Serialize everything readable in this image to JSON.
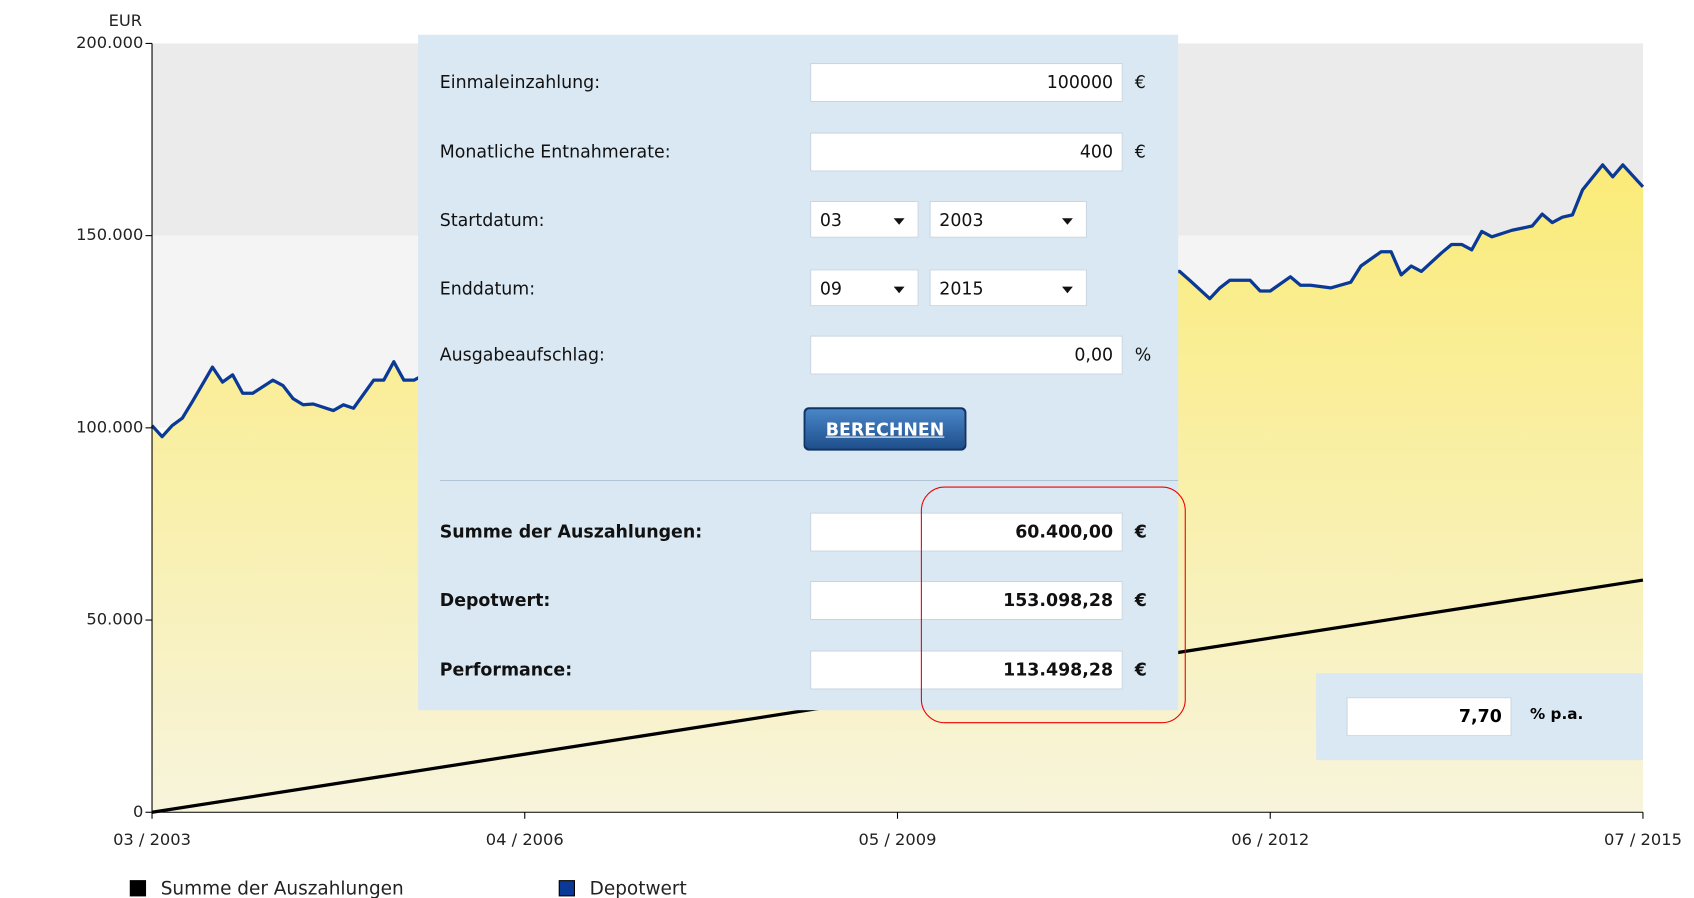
{
  "chart_data": {
    "type": "line",
    "ylabel": "EUR",
    "xlim": [
      0,
      148
    ],
    "ylim": [
      0,
      200000
    ],
    "xticks": [
      {
        "value": 0,
        "label": "03 / 2003"
      },
      {
        "value": 37,
        "label": "04 / 2006"
      },
      {
        "value": 74,
        "label": "05 / 2009"
      },
      {
        "value": 111,
        "label": "06 / 2012"
      },
      {
        "value": 148,
        "label": "07 / 2015"
      }
    ],
    "yticks": [
      0,
      {
        "value": 50000,
        "label": "50.000"
      },
      {
        "value": 100000,
        "label": "100.000"
      },
      {
        "value": 150000,
        "label": "150.000"
      },
      {
        "value": 200000,
        "label": "200.000"
      }
    ],
    "series": [
      {
        "name": "Summe der Auszahlungen",
        "color": "#000000",
        "x": [
          0,
          148
        ],
        "values": [
          0,
          60400
        ]
      },
      {
        "name": "Depotwert",
        "color": "#0a3a96",
        "x": [
          0,
          1,
          2,
          3,
          4,
          6,
          7,
          8,
          9,
          10,
          12,
          13,
          14,
          15,
          16,
          18,
          19,
          20,
          22,
          23,
          24,
          25,
          26,
          30,
          36,
          42,
          48,
          54,
          60,
          66,
          72,
          78,
          84,
          90,
          102,
          103,
          105,
          106,
          107,
          109,
          110,
          111,
          113,
          114,
          115,
          117,
          119,
          120,
          122,
          123,
          124,
          125,
          126,
          128,
          129,
          130,
          131,
          132,
          133,
          135,
          137,
          138,
          139,
          140,
          141,
          142,
          144,
          145,
          146,
          148
        ],
        "values": [
          100600,
          97700,
          100600,
          102500,
          106800,
          115800,
          111900,
          113800,
          109000,
          109000,
          112400,
          111000,
          107600,
          106000,
          106200,
          104500,
          106000,
          105100,
          112400,
          112400,
          117200,
          112400,
          112400,
          118000,
          124000,
          130000,
          134000,
          118000,
          112000,
          124000,
          130000,
          134000,
          136000,
          139000,
          140700,
          138400,
          133600,
          136400,
          138400,
          138400,
          135600,
          135600,
          139300,
          137100,
          137100,
          136400,
          137900,
          142100,
          145800,
          145800,
          139800,
          142100,
          140700,
          145500,
          147700,
          147700,
          146300,
          151100,
          149700,
          151400,
          152500,
          155600,
          153400,
          154800,
          155400,
          161900,
          168400,
          165300,
          168400,
          162700
        ]
      }
    ]
  },
  "form": {
    "inputs": [
      {
        "label": "Einmaleinzahlung:",
        "value": "100000",
        "unit": "€"
      },
      {
        "label": "Monatliche Entnahmerate:",
        "value": "400",
        "unit": "€"
      }
    ],
    "dates": [
      {
        "label": "Startdatum:",
        "month": "03",
        "year": "2003"
      },
      {
        "label": "Enddatum:",
        "month": "09",
        "year": "2015"
      }
    ],
    "fee": {
      "label": "Ausgabeaufschlag:",
      "value": "0,00",
      "unit": "%"
    },
    "button": "BERECHNEN",
    "results": [
      {
        "label": "Summe der Auszahlungen:",
        "value": "60.400,00",
        "unit": "€"
      },
      {
        "label": "Depotwert:",
        "value": "153.098,28",
        "unit": "€"
      },
      {
        "label": "Performance:",
        "value": "113.498,28",
        "unit": "€"
      }
    ],
    "rate": {
      "value": "7,70",
      "unit": "% p.a."
    }
  }
}
